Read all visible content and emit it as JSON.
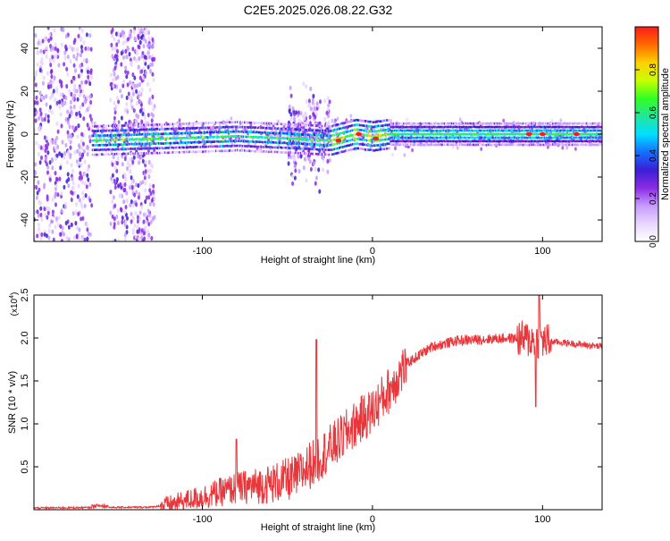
{
  "title": "C2E5.2025.026.08.22.G32",
  "colors": {
    "signal": "#e8363a",
    "background": "#ffffff",
    "axis": "#000000",
    "colorbar": [
      "#ffffff",
      "#e8d6ff",
      "#c79bff",
      "#8a2be2",
      "#3a1fd6",
      "#1570ff",
      "#00e0ff",
      "#23e59a",
      "#33ff22",
      "#c8ff00",
      "#ffd000",
      "#ff6a00",
      "#ff1a1a"
    ]
  },
  "chart_data": [
    {
      "type": "heatmap",
      "xlabel": "Height of straight line (km)",
      "ylabel": "Frequency (Hz)",
      "xlim": [
        -199,
        135
      ],
      "ylim": [
        -50,
        50
      ],
      "x_ticks": [
        -100,
        0,
        100
      ],
      "x_tick_labels": [
        "-100",
        "0",
        "100"
      ],
      "y_ticks": [
        -40,
        -20,
        0,
        20,
        40
      ],
      "y_tick_labels": [
        "-40",
        "-20",
        "0",
        "20",
        "40"
      ],
      "colorbar": {
        "label": "Normalized spectral amplitude",
        "range": [
          0,
          1
        ],
        "ticks": [
          0,
          0.2,
          0.4,
          0.6,
          0.8
        ],
        "tick_labels": [
          "0.0",
          "0.2",
          "0.4",
          "0.6",
          "0.8"
        ]
      },
      "features": {
        "noise_regions": [
          [
            -199,
            -165
          ],
          [
            -154,
            -128
          ],
          [
            -50,
            -25
          ]
        ],
        "signal_band": [
          {
            "x": -165,
            "freq": -3
          },
          {
            "x": -120,
            "freq": -2
          },
          {
            "x": -80,
            "freq": -1
          },
          {
            "x": -50,
            "freq": -2
          },
          {
            "x": -25,
            "freq": -3
          },
          {
            "x": -10,
            "freq": 0
          },
          {
            "x": 0,
            "freq": -1
          },
          {
            "x": 10,
            "freq": 0
          },
          {
            "x": 135,
            "freq": 0
          }
        ],
        "strong_points": [
          [
            -20,
            -3
          ],
          [
            -8,
            0
          ],
          [
            2,
            -2
          ],
          [
            92,
            0
          ],
          [
            100,
            0
          ],
          [
            120,
            0
          ]
        ]
      }
    },
    {
      "type": "line",
      "xlabel": "Height of straight line (km)",
      "ylabel": "SNR (10 * v/v)",
      "y_multiplier": "(x10",
      "y_multiplier_exp": "4",
      "xlim": [
        -199,
        135
      ],
      "ylim": [
        0,
        2.5
      ],
      "x_ticks": [
        -100,
        0,
        100
      ],
      "x_tick_labels": [
        "-100",
        "0",
        "100"
      ],
      "y_ticks": [
        0.5,
        1.0,
        1.5,
        2.0,
        2.5
      ],
      "y_tick_labels": [
        "0.5",
        "1.0",
        "1.5",
        "2.0",
        "2.5"
      ],
      "trend": [
        {
          "x": -199,
          "y": 0.02
        },
        {
          "x": -130,
          "y": 0.03
        },
        {
          "x": -120,
          "y": 0.06
        },
        {
          "x": -100,
          "y": 0.15
        },
        {
          "x": -80,
          "y": 0.25
        },
        {
          "x": -60,
          "y": 0.3
        },
        {
          "x": -45,
          "y": 0.38
        },
        {
          "x": -35,
          "y": 0.55
        },
        {
          "x": -20,
          "y": 0.8
        },
        {
          "x": -10,
          "y": 1.0
        },
        {
          "x": 0,
          "y": 1.15
        },
        {
          "x": 10,
          "y": 1.4
        },
        {
          "x": 20,
          "y": 1.7
        },
        {
          "x": 35,
          "y": 1.9
        },
        {
          "x": 50,
          "y": 1.97
        },
        {
          "x": 80,
          "y": 2.0
        },
        {
          "x": 110,
          "y": 1.95
        },
        {
          "x": 135,
          "y": 1.9
        }
      ],
      "peaks": [
        {
          "x": -33,
          "y": 1.98
        },
        {
          "x": -34,
          "y": 0.62
        },
        {
          "x": -80,
          "y": 0.82
        },
        {
          "x": 98,
          "y": 2.5
        },
        {
          "x": 96,
          "y": 1.2
        }
      ]
    }
  ]
}
